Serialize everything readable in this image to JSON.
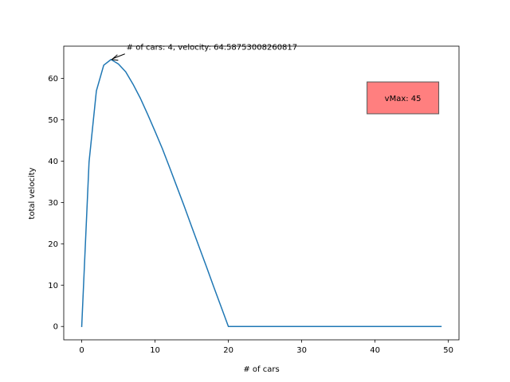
{
  "chart_data": {
    "type": "line",
    "title": "",
    "xlabel": "# of cars",
    "ylabel": "total velocity",
    "xlim": [
      -2.45,
      51.45
    ],
    "ylim": [
      -3.23,
      67.81
    ],
    "xticks": [
      0,
      10,
      20,
      30,
      40,
      50
    ],
    "yticks": [
      0,
      10,
      20,
      30,
      40,
      50,
      60
    ],
    "grid": false,
    "series": [
      {
        "color": "#1f77b4",
        "x": [
          0,
          1,
          2,
          3,
          4,
          5,
          6,
          7,
          8,
          9,
          10,
          11,
          12,
          13,
          14,
          15,
          16,
          17,
          18,
          19,
          20,
          21,
          22,
          23,
          24,
          25,
          26,
          27,
          28,
          29,
          30,
          31,
          32,
          33,
          34,
          35,
          36,
          37,
          38,
          39,
          40,
          41,
          42,
          43,
          44,
          45,
          46,
          47,
          48,
          49
        ],
        "y": [
          0,
          39.8,
          57,
          63.2,
          64.59,
          63.5,
          61.6,
          58.6,
          55.2,
          51.3,
          47.2,
          43,
          38.4,
          33.7,
          29,
          24.1,
          19.3,
          14.5,
          9.6,
          4.8,
          0,
          0,
          0,
          0,
          0,
          0,
          0,
          0,
          0,
          0,
          0,
          0,
          0,
          0,
          0,
          0,
          0,
          0,
          0,
          0,
          0,
          0,
          0,
          0,
          0,
          0,
          0,
          0,
          0,
          0
        ]
      }
    ],
    "annotation": {
      "text": "# of cars: 4, velocity: 64.58753008260817",
      "point": [
        4,
        64.59
      ],
      "text_at": [
        6.1,
        66.9
      ]
    },
    "textbox": {
      "text": "vMax: 45",
      "facecolor": "#ff7f7f",
      "center": [
        43.8,
        55.3
      ]
    }
  }
}
